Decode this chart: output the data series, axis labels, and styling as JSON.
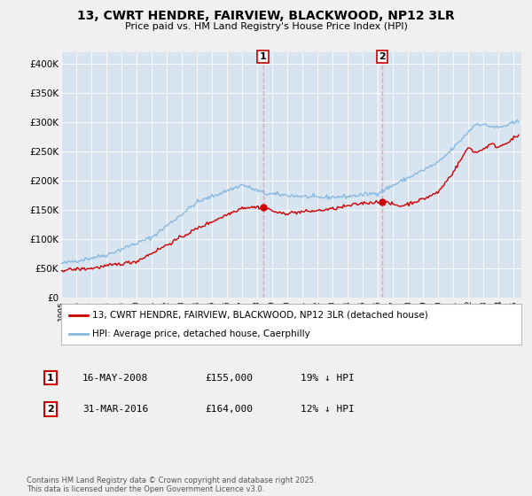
{
  "title": "13, CWRT HENDRE, FAIRVIEW, BLACKWOOD, NP12 3LR",
  "subtitle": "Price paid vs. HM Land Registry's House Price Index (HPI)",
  "ylim": [
    0,
    420000
  ],
  "yticks": [
    0,
    50000,
    100000,
    150000,
    200000,
    250000,
    300000,
    350000,
    400000
  ],
  "ytick_labels": [
    "£0",
    "£50K",
    "£100K",
    "£150K",
    "£200K",
    "£250K",
    "£300K",
    "£350K",
    "£400K"
  ],
  "hpi_color": "#88b8e0",
  "price_color": "#cc0000",
  "vline_color": "#ff9999",
  "vline1_date": 2008.37,
  "vline2_date": 2016.25,
  "point1_date": 2008.37,
  "point1_price": 155000,
  "point2_date": 2016.25,
  "point2_price": 164000,
  "legend_label_price": "13, CWRT HENDRE, FAIRVIEW, BLACKWOOD, NP12 3LR (detached house)",
  "legend_label_hpi": "HPI: Average price, detached house, Caerphilly",
  "table_row1": [
    "1",
    "16-MAY-2008",
    "£155,000",
    "19% ↓ HPI"
  ],
  "table_row2": [
    "2",
    "31-MAR-2016",
    "£164,000",
    "12% ↓ HPI"
  ],
  "footnote": "Contains HM Land Registry data © Crown copyright and database right 2025.\nThis data is licensed under the Open Government Licence v3.0.",
  "fig_bg_color": "#f0f0f0",
  "plot_bg_color": "#d8e4f0",
  "xmin": 1995,
  "xmax": 2025.5
}
